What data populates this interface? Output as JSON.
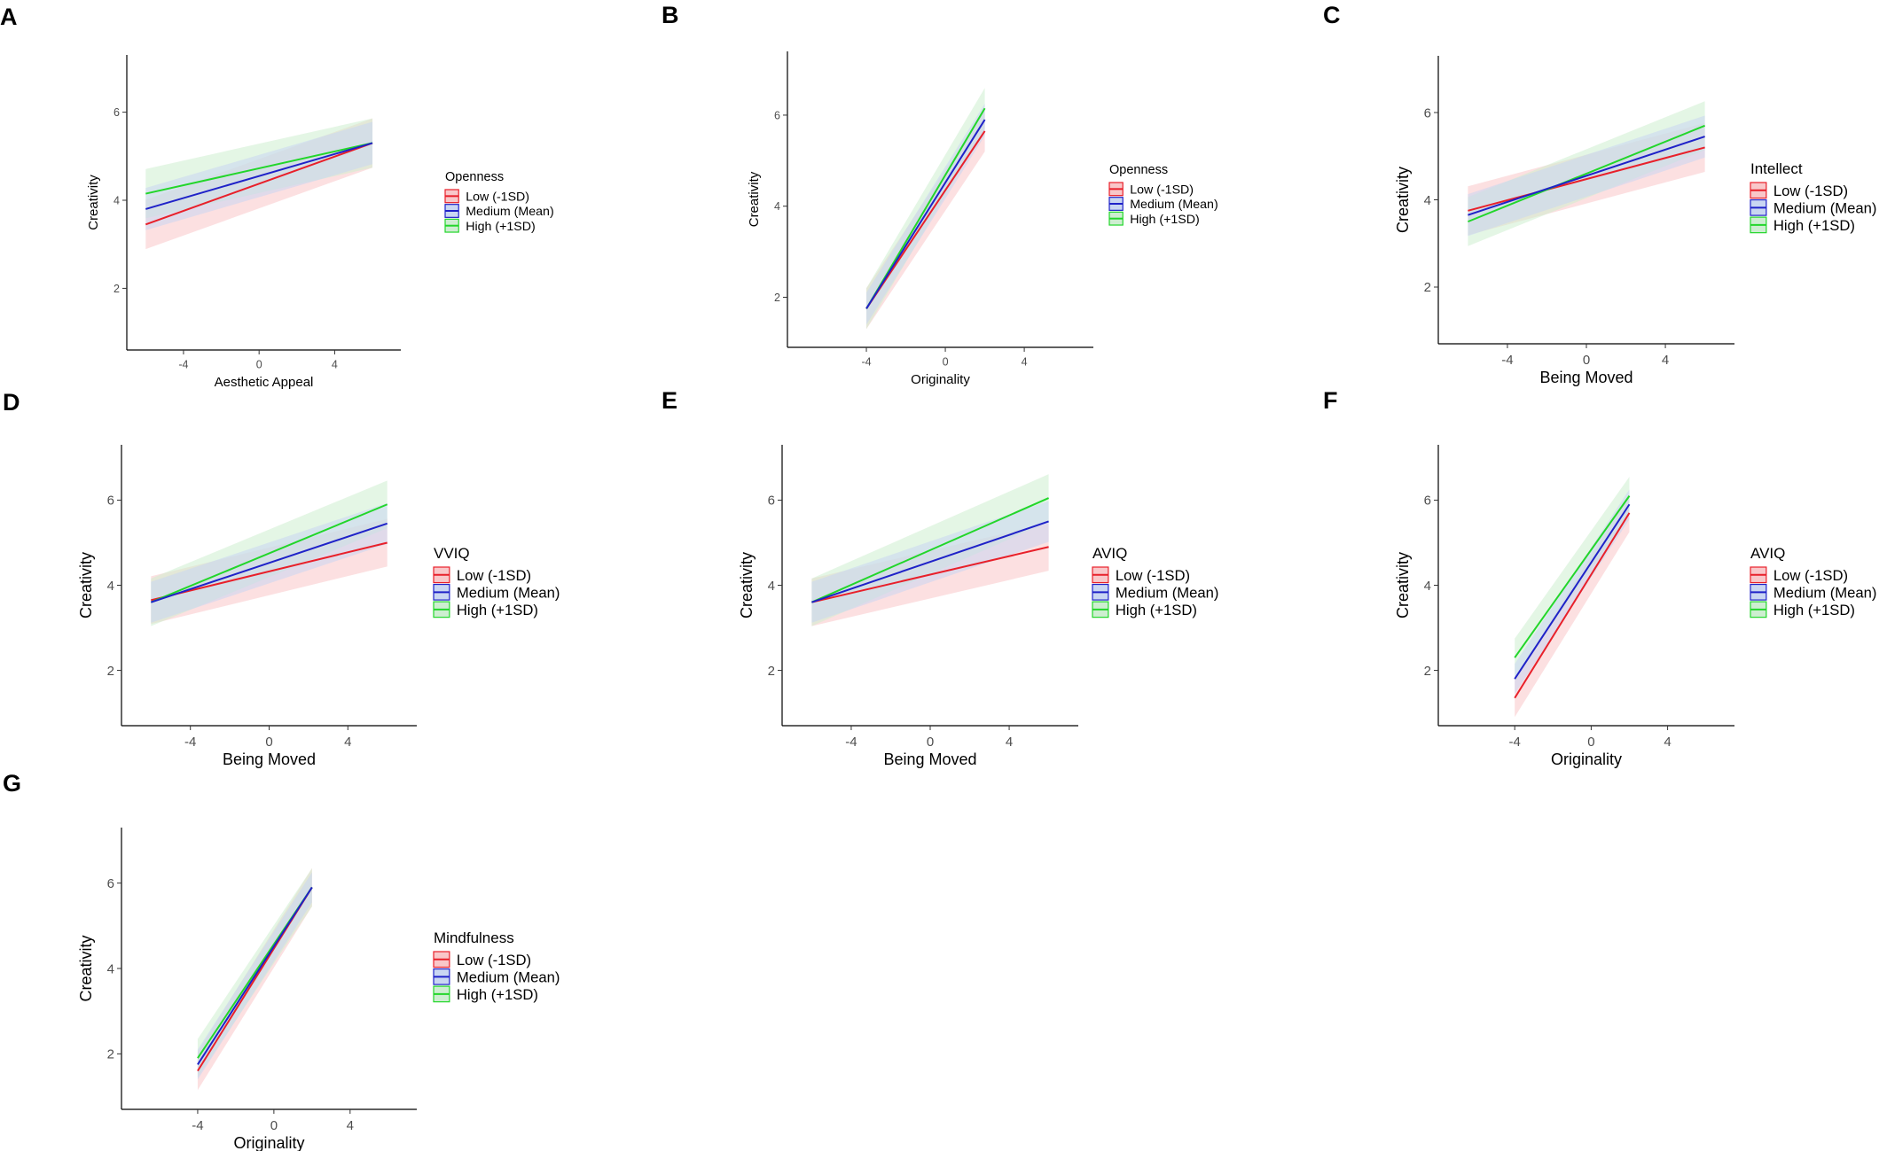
{
  "legend_labels": [
    "Low (-1SD)",
    "Medium (Mean)",
    "High (+1SD)"
  ],
  "colors": {
    "low": "#e8202a",
    "medium": "#1f22c8",
    "high": "#22d62a",
    "low_band": "#f9c7c9",
    "medium_band": "#c9d6f2",
    "high_band": "#cdeed0"
  },
  "chart_data": [
    {
      "panel": "A",
      "type": "line",
      "xlabel": "Aesthetic Appeal",
      "ylabel": "Creativity",
      "xlim": [
        -7,
        7.5
      ],
      "ylim": [
        0.6,
        7.3
      ],
      "xticks": [
        "-4",
        "0",
        "4"
      ],
      "yticks": [
        "2",
        "4",
        "6"
      ],
      "legend_title": "Openness",
      "series": [
        {
          "name": "Low (-1SD)",
          "x": [
            -6,
            6
          ],
          "y": [
            3.45,
            5.3
          ],
          "band": 0.35
        },
        {
          "name": "Medium (Mean)",
          "x": [
            -6,
            6
          ],
          "y": [
            3.8,
            5.3
          ],
          "band": 0.3
        },
        {
          "name": "High (+1SD)",
          "x": [
            -6,
            6
          ],
          "y": [
            4.15,
            5.3
          ],
          "band": 0.35
        }
      ]
    },
    {
      "panel": "B",
      "type": "line",
      "xlabel": "Originality",
      "ylabel": "Creativity",
      "xlim": [
        -8,
        7.5
      ],
      "ylim": [
        0.9,
        7.4
      ],
      "xticks": [
        "-4",
        "0",
        "4"
      ],
      "yticks": [
        "2",
        "4",
        "6"
      ],
      "legend_title": "Openness",
      "series": [
        {
          "name": "Low (-1SD)",
          "x": [
            -4,
            2
          ],
          "y": [
            1.75,
            5.65
          ],
          "band": 0.28
        },
        {
          "name": "Medium (Mean)",
          "x": [
            -4,
            2
          ],
          "y": [
            1.75,
            5.9
          ],
          "band": 0.22
        },
        {
          "name": "High (+1SD)",
          "x": [
            -4,
            2
          ],
          "y": [
            1.75,
            6.15
          ],
          "band": 0.28
        }
      ]
    },
    {
      "panel": "C",
      "type": "line",
      "xlabel": "Being Moved",
      "ylabel": "Creativity",
      "xlim": [
        -7.5,
        7.5
      ],
      "ylim": [
        0.7,
        7.3
      ],
      "xticks": [
        "-4",
        "0",
        "4"
      ],
      "yticks": [
        "2",
        "4",
        "6"
      ],
      "legend_title": "Intellect",
      "series": [
        {
          "name": "Low (-1SD)",
          "x": [
            -6,
            6
          ],
          "y": [
            3.75,
            5.2
          ],
          "band": 0.35
        },
        {
          "name": "Medium (Mean)",
          "x": [
            -6,
            6
          ],
          "y": [
            3.65,
            5.45
          ],
          "band": 0.3
        },
        {
          "name": "High (+1SD)",
          "x": [
            -6,
            6
          ],
          "y": [
            3.5,
            5.7
          ],
          "band": 0.35
        }
      ]
    },
    {
      "panel": "D",
      "type": "line",
      "xlabel": "Being Moved",
      "ylabel": "Creativity",
      "xlim": [
        -7.5,
        7.5
      ],
      "ylim": [
        0.7,
        7.3
      ],
      "xticks": [
        "-4",
        "0",
        "4"
      ],
      "yticks": [
        "2",
        "4",
        "6"
      ],
      "legend_title": "VVIQ",
      "series": [
        {
          "name": "Low (-1SD)",
          "x": [
            -6,
            6
          ],
          "y": [
            3.65,
            5.0
          ],
          "band": 0.35
        },
        {
          "name": "Medium (Mean)",
          "x": [
            -6,
            6
          ],
          "y": [
            3.6,
            5.45
          ],
          "band": 0.3
        },
        {
          "name": "High (+1SD)",
          "x": [
            -6,
            6
          ],
          "y": [
            3.6,
            5.9
          ],
          "band": 0.35
        }
      ]
    },
    {
      "panel": "E",
      "type": "line",
      "xlabel": "Being Moved",
      "ylabel": "Creativity",
      "xlim": [
        -7.5,
        7.5
      ],
      "ylim": [
        0.7,
        7.3
      ],
      "xticks": [
        "-4",
        "0",
        "4"
      ],
      "yticks": [
        "2",
        "4",
        "6"
      ],
      "legend_title": "AVIQ",
      "series": [
        {
          "name": "Low (-1SD)",
          "x": [
            -6,
            6
          ],
          "y": [
            3.6,
            4.9
          ],
          "band": 0.35
        },
        {
          "name": "Medium (Mean)",
          "x": [
            -6,
            6
          ],
          "y": [
            3.6,
            5.5
          ],
          "band": 0.3
        },
        {
          "name": "High (+1SD)",
          "x": [
            -6,
            6
          ],
          "y": [
            3.6,
            6.05
          ],
          "band": 0.35
        }
      ]
    },
    {
      "panel": "F",
      "type": "line",
      "xlabel": "Originality",
      "ylabel": "Creativity",
      "xlim": [
        -8,
        7.5
      ],
      "ylim": [
        0.7,
        7.3
      ],
      "xticks": [
        "-4",
        "0",
        "4"
      ],
      "yticks": [
        "2",
        "4",
        "6"
      ],
      "legend_title": "AVIQ",
      "series": [
        {
          "name": "Low (-1SD)",
          "x": [
            -4,
            2
          ],
          "y": [
            1.35,
            5.7
          ],
          "band": 0.28
        },
        {
          "name": "Medium (Mean)",
          "x": [
            -4,
            2
          ],
          "y": [
            1.8,
            5.9
          ],
          "band": 0.22
        },
        {
          "name": "High (+1SD)",
          "x": [
            -4,
            2
          ],
          "y": [
            2.3,
            6.1
          ],
          "band": 0.28
        }
      ]
    },
    {
      "panel": "G",
      "type": "line",
      "xlabel": "Originality",
      "ylabel": "Creativity",
      "xlim": [
        -8,
        7.5
      ],
      "ylim": [
        0.7,
        7.3
      ],
      "xticks": [
        "-4",
        "0",
        "4"
      ],
      "yticks": [
        "2",
        "4",
        "6"
      ],
      "legend_title": "Mindfulness",
      "series": [
        {
          "name": "Low (-1SD)",
          "x": [
            -4,
            2
          ],
          "y": [
            1.6,
            5.9
          ],
          "band": 0.28
        },
        {
          "name": "Medium (Mean)",
          "x": [
            -4,
            2
          ],
          "y": [
            1.75,
            5.9
          ],
          "band": 0.22
        },
        {
          "name": "High (+1SD)",
          "x": [
            -4,
            2
          ],
          "y": [
            1.9,
            5.9
          ],
          "band": 0.28
        }
      ]
    }
  ]
}
